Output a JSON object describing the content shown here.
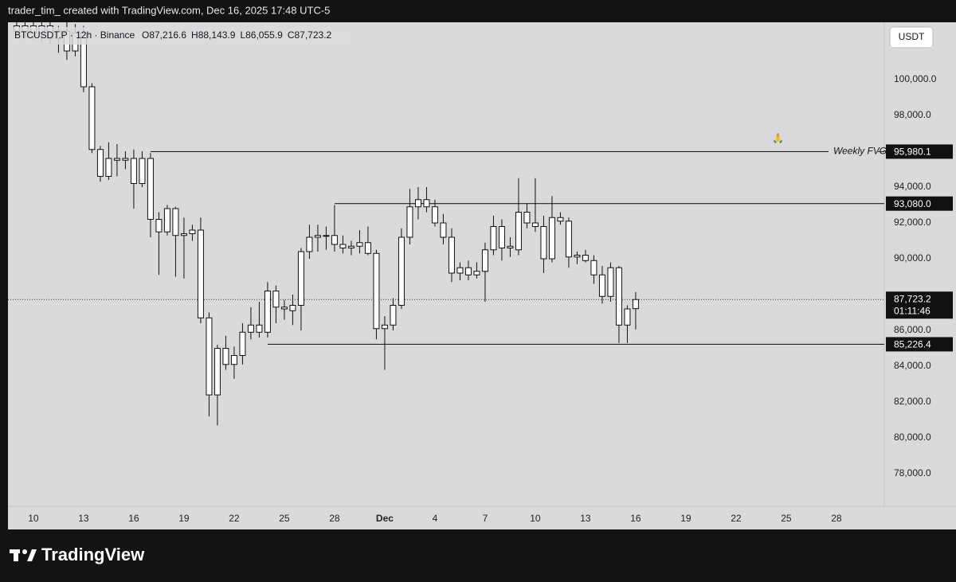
{
  "chart_data": {
    "type": "candlestick",
    "title": "trader_tim_ created with TradingView.com, Dec 16, 2025 17:48 UTC-5",
    "symbol": "BTCUSDT.P · 12h · Binance",
    "ohlc_legend": [
      "O87,216.6",
      "H88,143.9",
      "L86,055.9",
      "C87,723.2"
    ],
    "currency_button": "USDT",
    "brand": "TradingView",
    "bull_color": "#ffffff",
    "bear_color": "#ffffff",
    "wick_color": "#111111",
    "x": [
      9.0,
      9.5,
      10.0,
      10.5,
      11.0,
      11.5,
      12.0,
      12.5,
      13.0,
      13.5,
      14.0,
      14.5,
      15.0,
      15.5,
      16.0,
      16.5,
      17.0,
      17.5,
      18.0,
      18.5,
      19.0,
      19.5,
      20.0,
      20.5,
      21.0,
      21.5,
      22.0,
      22.5,
      23.0,
      23.5,
      24.0,
      24.5,
      25.0,
      25.5,
      26.0,
      26.5,
      27.0,
      27.5,
      28.0,
      28.5,
      29.0,
      29.5,
      30.0,
      30.5,
      31.0,
      31.5,
      32.0,
      32.5,
      33.0,
      33.5,
      34.0,
      34.5,
      35.0,
      35.5,
      36.0,
      36.5,
      37.0,
      37.5,
      38.0,
      38.5,
      39.0,
      39.5,
      40.0,
      40.5,
      41.0,
      41.5,
      42.0,
      42.5,
      43.0,
      43.5,
      44.0,
      44.5,
      45.0,
      45.5,
      46.0
    ],
    "open": [
      103000,
      102700,
      103000,
      102600,
      103000,
      102300,
      102700,
      101600,
      102600,
      99600,
      96100,
      94600,
      95600,
      95500,
      95600,
      94200,
      95600,
      92200,
      91500,
      92800,
      91300,
      91400,
      91600,
      86700,
      82400,
      85000,
      84100,
      84600,
      85900,
      86300,
      85900,
      88200,
      87300,
      87100,
      87400,
      90400,
      91200,
      91300,
      91300,
      90800,
      90600,
      90700,
      90900,
      90300,
      86100,
      86300,
      87400,
      91200,
      92900,
      93300,
      92900,
      92000,
      91200,
      89200,
      89500,
      89100,
      89300,
      90500,
      91800,
      90600,
      90500,
      92600,
      92000,
      91800,
      90000,
      92300,
      92100,
      90100,
      90200,
      89900,
      89100,
      87900,
      89500,
      86300,
      87216.6
    ],
    "high": [
      103600,
      103400,
      103500,
      103300,
      103400,
      103000,
      103200,
      103100,
      103000,
      99800,
      96300,
      96500,
      96400,
      96000,
      96100,
      96000,
      95900,
      92600,
      93000,
      92900,
      92300,
      91900,
      92300,
      87000,
      85200,
      85700,
      85100,
      86400,
      87300,
      87600,
      88700,
      88500,
      87700,
      88000,
      90600,
      91900,
      91900,
      91800,
      93000,
      91300,
      91000,
      91600,
      91800,
      90500,
      86800,
      87800,
      91700,
      93900,
      94000,
      94000,
      93300,
      92500,
      91700,
      89800,
      89900,
      89800,
      90900,
      92400,
      92200,
      91200,
      94500,
      93100,
      94500,
      92400,
      93500,
      92600,
      92300,
      90400,
      90500,
      90200,
      89600,
      89800,
      89600,
      87400,
      88143.9
    ],
    "low": [
      102400,
      102300,
      102200,
      102100,
      102000,
      101500,
      101100,
      101300,
      99300,
      95900,
      94300,
      94400,
      94600,
      95000,
      92800,
      94000,
      91200,
      89100,
      91300,
      89000,
      88900,
      91000,
      86400,
      81200,
      80700,
      83800,
      83300,
      84100,
      85500,
      85600,
      85600,
      86400,
      86600,
      86300,
      86000,
      90000,
      90400,
      90500,
      90400,
      90300,
      90200,
      90300,
      90200,
      85500,
      83800,
      86000,
      87200,
      90800,
      92200,
      92600,
      91800,
      90800,
      88700,
      88800,
      88800,
      88900,
      87600,
      90200,
      89900,
      90100,
      90200,
      91700,
      91500,
      89200,
      89800,
      91900,
      89500,
      89700,
      89800,
      88600,
      87500,
      87600,
      85300,
      85300,
      86055.9
    ],
    "close": [
      102700,
      103000,
      102600,
      103000,
      102300,
      102700,
      101600,
      102600,
      99600,
      96100,
      94600,
      95600,
      95500,
      95600,
      94200,
      95600,
      92200,
      91500,
      92800,
      91300,
      91400,
      91600,
      86700,
      82400,
      85000,
      84100,
      84600,
      85900,
      86300,
      85900,
      88200,
      87300,
      87200,
      87400,
      90400,
      91200,
      91300,
      91300,
      90800,
      90600,
      90700,
      90900,
      90300,
      86100,
      86300,
      87400,
      91200,
      92900,
      93300,
      92900,
      92000,
      91200,
      89200,
      89500,
      89100,
      89300,
      90500,
      91800,
      90600,
      90700,
      92600,
      92000,
      91800,
      90000,
      92300,
      92100,
      90100,
      90200,
      89900,
      89100,
      87900,
      89500,
      86300,
      87200,
      87723.2
    ],
    "xlim": [
      8.48,
      60.86
    ],
    "xticks": [
      10,
      13,
      16,
      19,
      22,
      25,
      28,
      {
        "value": 31,
        "label": "Dec"
      },
      {
        "value": 34,
        "label": "4"
      },
      {
        "value": 37,
        "label": "7"
      },
      {
        "value": 40,
        "label": "10"
      },
      {
        "value": 43,
        "label": "13"
      },
      {
        "value": 46,
        "label": "16"
      },
      {
        "value": 49,
        "label": "19"
      },
      {
        "value": 52,
        "label": "22"
      },
      {
        "value": 55,
        "label": "25"
      },
      {
        "value": 58,
        "label": "28"
      }
    ],
    "ylim": [
      76180,
      103110
    ],
    "yticks": [
      {
        "value": 78000,
        "label": "78,000.0"
      },
      {
        "value": 80000,
        "label": "80,000.0"
      },
      {
        "value": 82000,
        "label": "82,000.0"
      },
      {
        "value": 84000,
        "label": "84,000.0"
      },
      {
        "value": 86000,
        "label": "86,000.0"
      },
      {
        "value": 90000,
        "label": "90,000.0"
      },
      {
        "value": 92000,
        "label": "92,000.0"
      },
      {
        "value": 94000,
        "label": "94,000.0"
      },
      {
        "value": 98000,
        "label": "98,000.0"
      },
      {
        "value": 100000,
        "label": "100,000.0"
      }
    ],
    "levels": [
      {
        "value": 95980.1,
        "label": "95,980.1",
        "start": 17.0,
        "name": "Weekly FVG"
      },
      {
        "value": 93080.0,
        "label": "93,080.0",
        "start": 28.0
      },
      {
        "value": 85226.4,
        "label": "85,226.4",
        "start": 24.0
      }
    ],
    "current_price": {
      "value": 87723.2,
      "label": "87,723.2",
      "countdown": "01:11:46"
    },
    "annotation": {
      "text": "🙏",
      "x": 54.5,
      "y": 96700
    }
  }
}
